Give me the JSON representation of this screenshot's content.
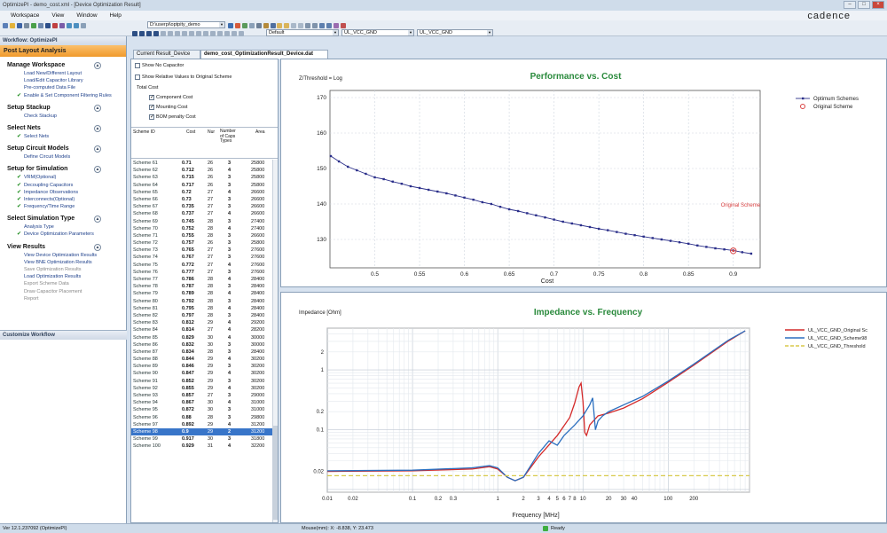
{
  "window": {
    "title": "OptimizePI - demo_cost.xml - [Device Optimization Result]"
  },
  "menu": [
    "Workspace",
    "View",
    "Window",
    "Help"
  ],
  "brand": "cadence",
  "toolbar": {
    "path_value": "D:\\userpi\\optpity_demo",
    "default_combo": "Default",
    "net_combo_1": "UL_VCC_GND",
    "net_combo_2": "UL_VCC_GND"
  },
  "sidebar": {
    "title": "Workflow: OptimizePI",
    "header": "Post Layout Analysis",
    "sections": [
      {
        "title": "Manage Workspace",
        "items": [
          {
            "label": "Load New/Different Layout",
            "check": false
          },
          {
            "label": "Load/Edit Capacitor Library",
            "check": false
          },
          {
            "label": "Pre-computed Data File",
            "check": false
          },
          {
            "label": "Enable & Set Component Filtering Rules",
            "check": true
          }
        ]
      },
      {
        "title": "Setup Stackup",
        "items": [
          {
            "label": "Check Stackup",
            "check": false
          }
        ]
      },
      {
        "title": "Select Nets",
        "items": [
          {
            "label": "Select Nets",
            "check": true
          }
        ]
      },
      {
        "title": "Setup Circuit Models",
        "items": [
          {
            "label": "Define Circuit Models",
            "check": false
          }
        ]
      },
      {
        "title": "Setup for Simulation",
        "items": [
          {
            "label": "VRM(Optional)",
            "check": true
          },
          {
            "label": "Decoupling Capacitors",
            "check": true
          },
          {
            "label": "Impedance Observations",
            "check": true
          },
          {
            "label": "Interconnects(Optional)",
            "check": true
          },
          {
            "label": "Frequency/Time Range",
            "check": true
          }
        ]
      },
      {
        "title": "Select Simulation Type",
        "items": [
          {
            "label": "Analysis Type",
            "check": false
          },
          {
            "label": "Device Optimization Parameters",
            "check": true
          }
        ]
      },
      {
        "title": "View Results",
        "items": [
          {
            "label": "View Device Optimization Results",
            "check": false
          },
          {
            "label": "View BNE Optimization Results",
            "check": false
          },
          {
            "label": "Save Optimization Results",
            "check": false,
            "gray": true
          },
          {
            "label": "Load Optimization Results",
            "check": false
          },
          {
            "label": "Export Scheme Data",
            "check": false,
            "gray": true
          },
          {
            "label": "Draw Capacitor Placement",
            "check": false,
            "gray": true
          },
          {
            "label": "Report",
            "check": false,
            "gray": true
          }
        ]
      }
    ],
    "customize": "Customize Workflow"
  },
  "tabs": [
    "Current Result_Device",
    "demo_cost_OptimizationResult_Device.dat"
  ],
  "options": {
    "show_no_capacitor": "Show No Capacitor",
    "show_relative": "Show Relative Values to Original Scheme",
    "total_cost": "Total Cost",
    "component_cost": "Component Cost",
    "mounting_cost": "Mounting Cost",
    "bom_cost": "BOM penalty Cost"
  },
  "table": {
    "headers": [
      "Scheme ID",
      "Cost",
      "Nur",
      "Number of Caps Types",
      "Area"
    ],
    "rows": [
      [
        "Scheme 61",
        "0.71",
        "26",
        "3",
        "25800"
      ],
      [
        "Scheme 62",
        "0.712",
        "26",
        "4",
        "25800"
      ],
      [
        "Scheme 63",
        "0.715",
        "26",
        "3",
        "25800"
      ],
      [
        "Scheme 64",
        "0.717",
        "26",
        "3",
        "25800"
      ],
      [
        "Scheme 65",
        "0.72",
        "27",
        "4",
        "26600"
      ],
      [
        "Scheme 66",
        "0.73",
        "27",
        "3",
        "26600"
      ],
      [
        "Scheme 67",
        "0.735",
        "27",
        "3",
        "26600"
      ],
      [
        "Scheme 68",
        "0.737",
        "27",
        "4",
        "26600"
      ],
      [
        "Scheme 69",
        "0.745",
        "28",
        "3",
        "27400"
      ],
      [
        "Scheme 70",
        "0.752",
        "28",
        "4",
        "27400"
      ],
      [
        "Scheme 71",
        "0.755",
        "28",
        "3",
        "26600"
      ],
      [
        "Scheme 72",
        "0.757",
        "26",
        "3",
        "25800"
      ],
      [
        "Scheme 73",
        "0.765",
        "27",
        "3",
        "27600"
      ],
      [
        "Scheme 74",
        "0.767",
        "27",
        "3",
        "27600"
      ],
      [
        "Scheme 75",
        "0.772",
        "27",
        "4",
        "27600"
      ],
      [
        "Scheme 76",
        "0.777",
        "27",
        "3",
        "27600"
      ],
      [
        "Scheme 77",
        "0.786",
        "28",
        "4",
        "28400"
      ],
      [
        "Scheme 78",
        "0.787",
        "28",
        "3",
        "28400"
      ],
      [
        "Scheme 79",
        "0.789",
        "28",
        "4",
        "28400"
      ],
      [
        "Scheme 80",
        "0.792",
        "28",
        "3",
        "28400"
      ],
      [
        "Scheme 81",
        "0.795",
        "28",
        "4",
        "28400"
      ],
      [
        "Scheme 82",
        "0.797",
        "28",
        "3",
        "28400"
      ],
      [
        "Scheme 83",
        "0.812",
        "29",
        "4",
        "29200"
      ],
      [
        "Scheme 84",
        "0.814",
        "27",
        "4",
        "28200"
      ],
      [
        "Scheme 85",
        "0.829",
        "30",
        "4",
        "30000"
      ],
      [
        "Scheme 86",
        "0.832",
        "30",
        "3",
        "30000"
      ],
      [
        "Scheme 87",
        "0.834",
        "28",
        "3",
        "28400"
      ],
      [
        "Scheme 88",
        "0.844",
        "29",
        "4",
        "30200"
      ],
      [
        "Scheme 89",
        "0.846",
        "29",
        "3",
        "30200"
      ],
      [
        "Scheme 90",
        "0.847",
        "29",
        "4",
        "30200"
      ],
      [
        "Scheme 91",
        "0.852",
        "29",
        "3",
        "30200"
      ],
      [
        "Scheme 92",
        "0.855",
        "29",
        "4",
        "30200"
      ],
      [
        "Scheme 93",
        "0.857",
        "27",
        "3",
        "29000"
      ],
      [
        "Scheme 94",
        "0.867",
        "30",
        "4",
        "31000"
      ],
      [
        "Scheme 95",
        "0.872",
        "30",
        "3",
        "31000"
      ],
      [
        "Scheme 96",
        "0.88",
        "28",
        "3",
        "29800"
      ],
      [
        "Scheme 97",
        "0.892",
        "29",
        "4",
        "31200"
      ],
      [
        "Scheme 98",
        "0.9",
        "29",
        "2",
        "31200"
      ],
      [
        "Scheme 99",
        "0.917",
        "30",
        "3",
        "31800"
      ],
      [
        "Scheme 100",
        "0.929",
        "31",
        "4",
        "32200"
      ]
    ],
    "selected_index": 37
  },
  "chart_data": [
    {
      "type": "scatter",
      "title": "Performance vs. Cost",
      "xlabel": "Cost",
      "ylabel": "Z/Threshold = Log",
      "xlim": [
        0.45,
        0.93
      ],
      "ylim": [
        122,
        172
      ],
      "xticks": [
        0.5,
        0.55,
        0.6,
        0.65,
        0.7,
        0.75,
        0.8,
        0.85,
        0.9
      ],
      "yticks": [
        130,
        140,
        150,
        160,
        170
      ],
      "grid": true,
      "legend_placement": "right",
      "series": [
        {
          "name": "Optimum Schemes",
          "color": "#2b2f8a",
          "x": [
            0.451,
            0.46,
            0.47,
            0.48,
            0.49,
            0.5,
            0.51,
            0.52,
            0.53,
            0.54,
            0.55,
            0.56,
            0.57,
            0.58,
            0.59,
            0.6,
            0.61,
            0.62,
            0.63,
            0.64,
            0.65,
            0.66,
            0.67,
            0.68,
            0.69,
            0.7,
            0.71,
            0.72,
            0.73,
            0.74,
            0.75,
            0.76,
            0.77,
            0.78,
            0.79,
            0.8,
            0.81,
            0.82,
            0.83,
            0.84,
            0.85,
            0.86,
            0.87,
            0.88,
            0.89,
            0.9,
            0.91,
            0.92
          ],
          "y": [
            153.5,
            152,
            150.5,
            149.5,
            148.5,
            147.5,
            147,
            146.3,
            145.7,
            145,
            144.5,
            144,
            143.5,
            143,
            142.4,
            141.8,
            141.2,
            140.5,
            140,
            139.2,
            138.5,
            138,
            137.4,
            136.8,
            136.2,
            135.6,
            135,
            134.5,
            134,
            133.5,
            133,
            132.6,
            132.1,
            131.6,
            131.2,
            130.8,
            130.4,
            130,
            129.6,
            129.2,
            128.8,
            128.3,
            127.9,
            127.5,
            127.2,
            126.9,
            126.4,
            126
          ]
        },
        {
          "name": "Original Scheme",
          "color": "#d94141",
          "x": [
            0.9
          ],
          "y": [
            126.8
          ]
        }
      ],
      "annotations": [
        "Original Scheme"
      ]
    },
    {
      "type": "line",
      "title": "Impedance vs. Frequency",
      "xlabel": "Frequency [MHz]",
      "ylabel": "Impedance [Ohm]",
      "log_x": true,
      "log_y": true,
      "xlim": [
        0.01,
        900
      ],
      "ylim": [
        0.009,
        5
      ],
      "xticks": [
        0.01,
        0.02,
        0.1,
        0.2,
        0.3,
        1,
        2,
        3,
        4,
        5,
        6,
        7,
        8,
        10,
        20,
        30,
        40,
        100,
        200
      ],
      "yticks": [
        0.02,
        0.1,
        0.2,
        1,
        2
      ],
      "grid": true,
      "legend_placement": "right",
      "series": [
        {
          "name": "UL_VCC_GND_Original Sc",
          "color": "#d42a2a",
          "x": [
            0.01,
            0.1,
            0.5,
            0.8,
            1.0,
            1.3,
            1.6,
            2,
            3,
            5,
            7,
            8,
            9,
            9.5,
            10,
            10.5,
            11,
            12,
            15,
            20,
            30,
            50,
            100,
            200,
            500,
            800
          ],
          "y": [
            0.02,
            0.0205,
            0.022,
            0.024,
            0.022,
            0.016,
            0.014,
            0.016,
            0.035,
            0.08,
            0.16,
            0.28,
            0.52,
            0.6,
            0.3,
            0.09,
            0.08,
            0.12,
            0.17,
            0.19,
            0.23,
            0.33,
            0.62,
            1.2,
            3,
            4.5
          ]
        },
        {
          "name": "UL_VCC_GND_Scheme98",
          "color": "#2b6fbf",
          "x": [
            0.01,
            0.1,
            0.5,
            0.8,
            1.0,
            1.3,
            1.6,
            2,
            3,
            4,
            5,
            6,
            8,
            10,
            12,
            13,
            14,
            15,
            17,
            20,
            30,
            50,
            100,
            200,
            500,
            800
          ],
          "y": [
            0.0205,
            0.021,
            0.023,
            0.025,
            0.023,
            0.016,
            0.014,
            0.016,
            0.04,
            0.065,
            0.055,
            0.08,
            0.12,
            0.17,
            0.26,
            0.34,
            0.1,
            0.14,
            0.17,
            0.2,
            0.26,
            0.36,
            0.65,
            1.25,
            3.1,
            4.5
          ]
        },
        {
          "name": "UL_VCC_GND_Threshold",
          "color": "#d8c94a",
          "x": [
            0.01,
            900
          ],
          "y": [
            0.017,
            0.017
          ]
        }
      ]
    }
  ],
  "status": {
    "left": "Ver 12.1.237092 (OptimizePI)",
    "mouse": "Mouse(mm): X: -8.838, Y: 23.473",
    "ready": "Ready"
  }
}
